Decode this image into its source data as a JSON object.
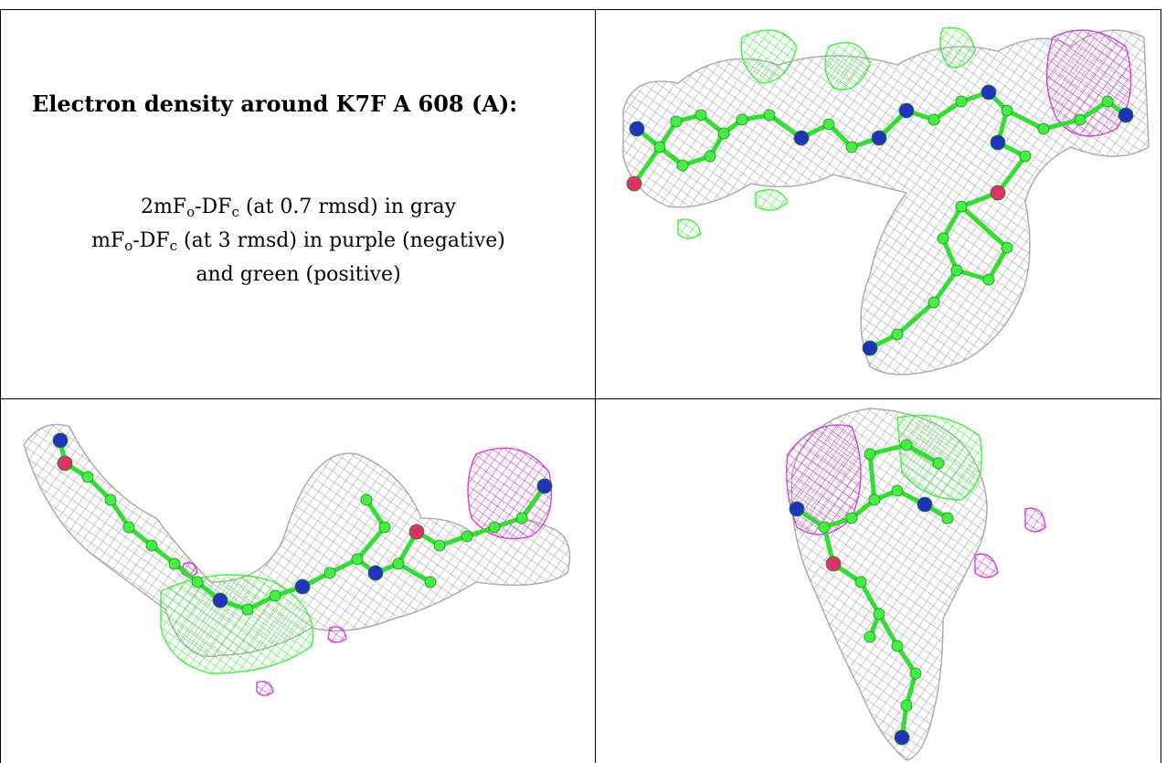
{
  "title": "Electron density around K7F A 608 (A):",
  "legend": {
    "line1": {
      "main": "2mF",
      "sub1": "o",
      "mid": "-DF",
      "sub2": "c",
      "tail": " (at 0.7 rmsd) in gray"
    },
    "line2": {
      "main": "mF",
      "sub1": "o",
      "mid": "-DF",
      "sub2": "c",
      "tail": " (at 3 rmsd) in purple (negative)"
    },
    "line3": "and green (positive)"
  },
  "colors": {
    "mesh_gray": "#9a9a9a",
    "mesh_green": "#22ee22",
    "mesh_purple": "#cc22cc",
    "atom_carbon": "#44ee44",
    "atom_nitrogen": "#2233bb",
    "atom_oxygen": "#e0306a",
    "bond": "#33dd33"
  },
  "views": [
    {
      "name": "view-1"
    },
    {
      "name": "view-2"
    },
    {
      "name": "view-3"
    }
  ]
}
